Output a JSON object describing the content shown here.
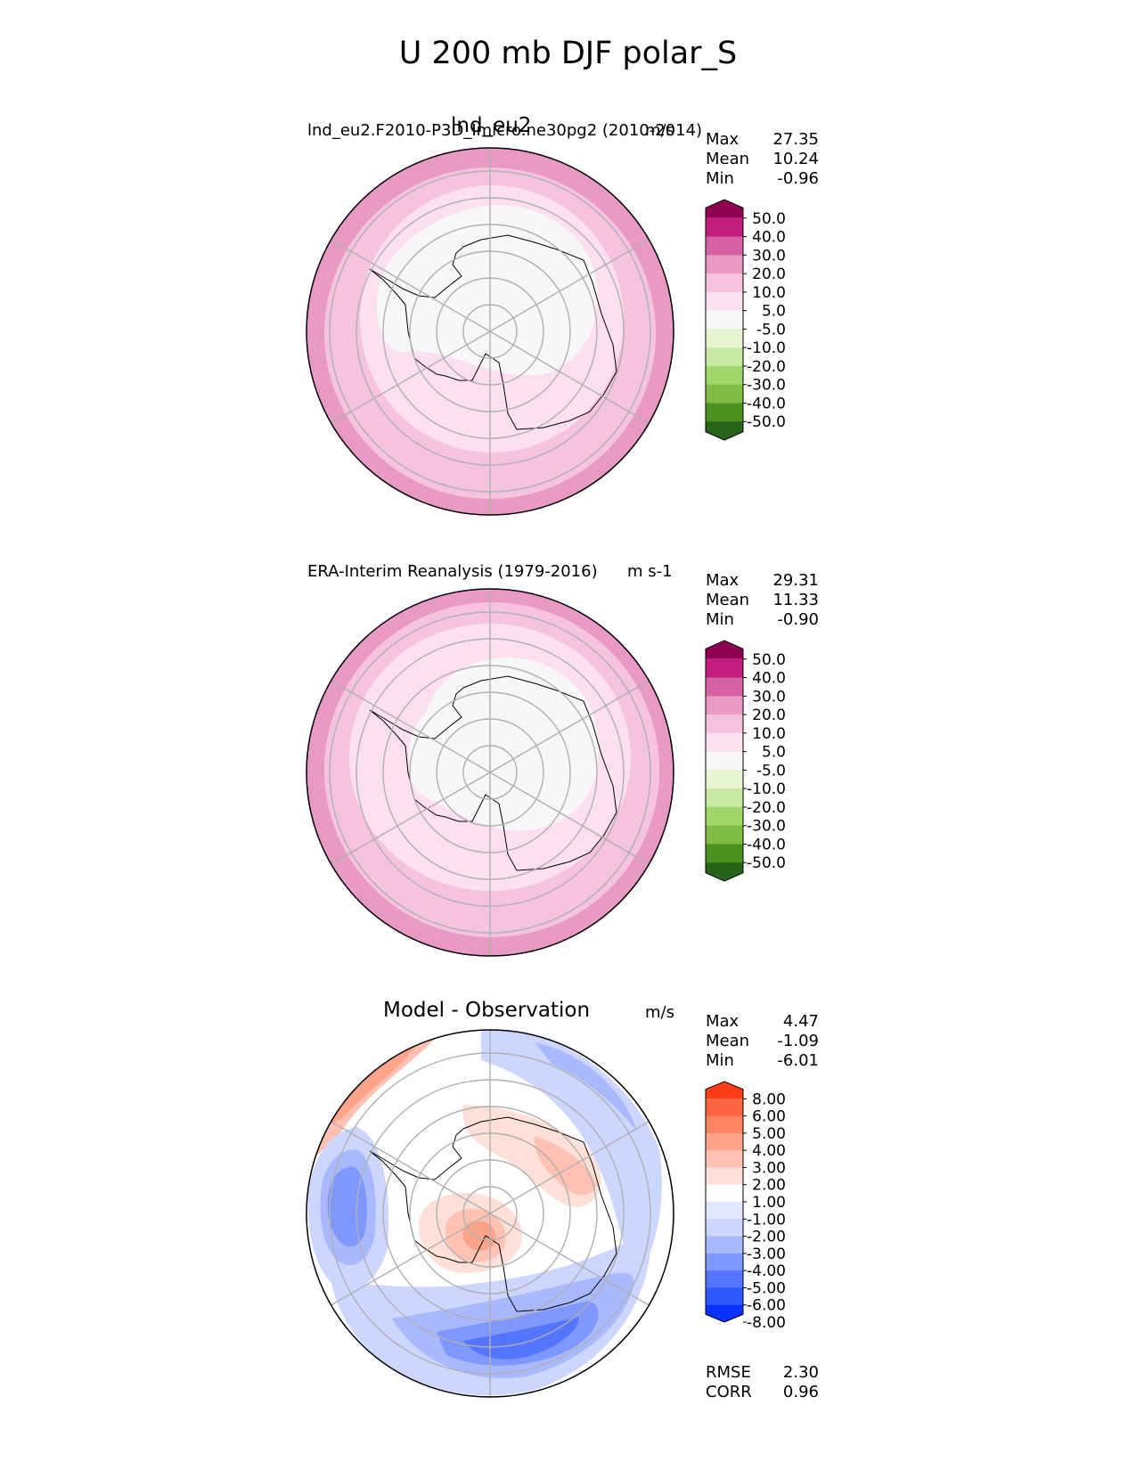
{
  "title": "U 200 mb DJF polar_S",
  "colors": {
    "seq_below": "#276419",
    "seq": [
      "#4d9221",
      "#7fbc41",
      "#a1d76a",
      "#c9e8a3",
      "#e6f5d0",
      "#f7f7f7",
      "#fde0ef",
      "#f5c3de",
      "#e99ac4",
      "#d461a4",
      "#c51b7d",
      "#8e0152"
    ],
    "diff": [
      "#0a30ff",
      "#3056ff",
      "#5375ff",
      "#7e98ff",
      "#a9b9ff",
      "#ccd6ff",
      "#e1e7ff",
      "#ffffff",
      "#ffe0d8",
      "#ffc2b2",
      "#ffa38b",
      "#ff8462",
      "#ff6342",
      "#ff3d14"
    ]
  },
  "panels": [
    {
      "id": "test",
      "title": "lnd_eu2",
      "subtitle": "lnd_eu2.F2010-P3D_Imicro.ne30pg2 (2010-2014)",
      "units": "m/s",
      "stats": [
        {
          "label": "Max",
          "value": "27.35"
        },
        {
          "label": "Mean",
          "value": "10.24"
        },
        {
          "label": "Min",
          "value": "-0.96"
        }
      ],
      "colorbar_labels": [
        "50.0",
        "40.0",
        "30.0",
        "20.0",
        "10.0",
        "5.0",
        "-5.0",
        "-10.0",
        "-20.0",
        "-30.0",
        "-40.0",
        "-50.0"
      ]
    },
    {
      "id": "ref",
      "title": "",
      "subtitle": "ERA-Interim Reanalysis (1979-2016)",
      "units": "m s-1",
      "stats": [
        {
          "label": "Max",
          "value": "29.31"
        },
        {
          "label": "Mean",
          "value": "11.33"
        },
        {
          "label": "Min",
          "value": "-0.90"
        }
      ],
      "colorbar_labels": [
        "50.0",
        "40.0",
        "30.0",
        "20.0",
        "10.0",
        "5.0",
        "-5.0",
        "-10.0",
        "-20.0",
        "-30.0",
        "-40.0",
        "-50.0"
      ]
    },
    {
      "id": "diff",
      "title": "Model - Observation",
      "subtitle": "",
      "units": "m/s",
      "stats": [
        {
          "label": "Max",
          "value": "4.47"
        },
        {
          "label": "Mean",
          "value": "-1.09"
        },
        {
          "label": "Min",
          "value": "-6.01"
        }
      ],
      "colorbar_labels": [
        "8.00",
        "6.00",
        "5.00",
        "4.00",
        "3.00",
        "2.00",
        "1.00",
        "-1.00",
        "-2.00",
        "-3.00",
        "-4.00",
        "-5.00",
        "-6.00",
        "-8.00"
      ],
      "metrics": [
        {
          "label": "RMSE",
          "value": "2.30"
        },
        {
          "label": "CORR",
          "value": "0.96"
        }
      ]
    }
  ],
  "chart_data": {
    "type": "heatmap",
    "projection": "south polar stereographic",
    "variable": "U 200 mb",
    "season": "DJF",
    "series": [
      {
        "name": "lnd_eu2",
        "max": 27.35,
        "mean": 10.24,
        "min": -0.96,
        "levels": [
          -50,
          -40,
          -30,
          -20,
          -10,
          -5,
          5,
          10,
          20,
          30,
          40,
          50
        ]
      },
      {
        "name": "ERA-Interim Reanalysis (1979-2016)",
        "max": 29.31,
        "mean": 11.33,
        "min": -0.9,
        "levels": [
          -50,
          -40,
          -30,
          -20,
          -10,
          -5,
          5,
          10,
          20,
          30,
          40,
          50
        ]
      },
      {
        "name": "Model - Observation",
        "max": 4.47,
        "mean": -1.09,
        "min": -6.01,
        "rmse": 2.3,
        "corr": 0.96,
        "levels": [
          -8,
          -6,
          -5,
          -4,
          -3,
          -2,
          -1,
          1,
          2,
          3,
          4,
          5,
          6,
          8
        ]
      }
    ]
  }
}
